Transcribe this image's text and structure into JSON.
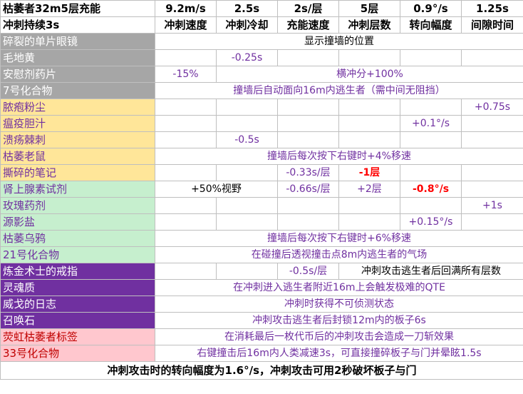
{
  "header": {
    "title1": "枯萎者32m5层充能",
    "title2": "冲刺持续3s",
    "values": [
      "9.2m/s",
      "2.5s",
      "2s/层",
      "5层",
      "0.9°/s",
      "1.25s"
    ],
    "labels": [
      "冲刺速度",
      "冲刺冷却",
      "充能速度",
      "冲刺层数",
      "转向幅度",
      "间隙时间"
    ]
  },
  "rows": [
    {
      "name": "碎裂的单片眼镜",
      "effect": "显示撞墙的位置"
    },
    {
      "name": "毛地黄",
      "cooldown": "-0.25s"
    },
    {
      "name": "安慰剂药片",
      "speed": "-15%",
      "effect": "横冲分+100%"
    },
    {
      "name": "7号化合物",
      "effect": "撞墙后自动面向16m内逃生者（需中间无阻挡）"
    },
    {
      "name": "脓疱粉尘",
      "gap": "+0.75s"
    },
    {
      "name": "瘟疫胆汁",
      "turn": "+0.1°/s"
    },
    {
      "name": "溃疡棘刺",
      "cooldown": "-0.5s"
    },
    {
      "name": "枯萎老鼠",
      "effect": "撞墙后每次按下右键时+4%移速"
    },
    {
      "name": "撕碎的笔记",
      "charge": "-0.33s/层",
      "stacks": "-1层"
    },
    {
      "name": "肾上腺素试剂",
      "vision": "+50%视野",
      "charge": "-0.66s/层",
      "stacks": "+2层",
      "turn": "-0.8°/s"
    },
    {
      "name": "玫瑰药剂",
      "gap": "+1s"
    },
    {
      "name": "源影盐",
      "turn": "+0.15°/s"
    },
    {
      "name": "枯萎乌鸦",
      "effect": "撞墙后每次按下右键时+6%移速"
    },
    {
      "name": "21号化合物",
      "effect": "在碰撞后透视撞击点8m内逃生者的气场"
    },
    {
      "name": "炼金术士的戒指",
      "charge": "-0.5s/层",
      "effect2": "冲刺攻击逃生者后回满所有层数"
    },
    {
      "name": "灵魂质",
      "effect": "在冲刺进入逃生者附近16m上会触发极难的QTE"
    },
    {
      "name": "威戈的日志",
      "effect": "冲刺时获得不可侦测状态"
    },
    {
      "name": "召唤石",
      "effect": "冲刺攻击逃生者后封锁12m内的板子6s"
    },
    {
      "name": "荧虹枯萎者标签",
      "effect": "在消耗最后一枚代币后的冲刺攻击会造成一刀斩效果"
    },
    {
      "name": "33号化合物",
      "effect": "右键撞击后16m内人类减速3s，可直接撞碎板子与门并晕眩1.5s"
    }
  ],
  "footer": "冲刺攻击时的转向幅度为1.6°/s，冲刺攻击可用2秒破坏板子与门"
}
